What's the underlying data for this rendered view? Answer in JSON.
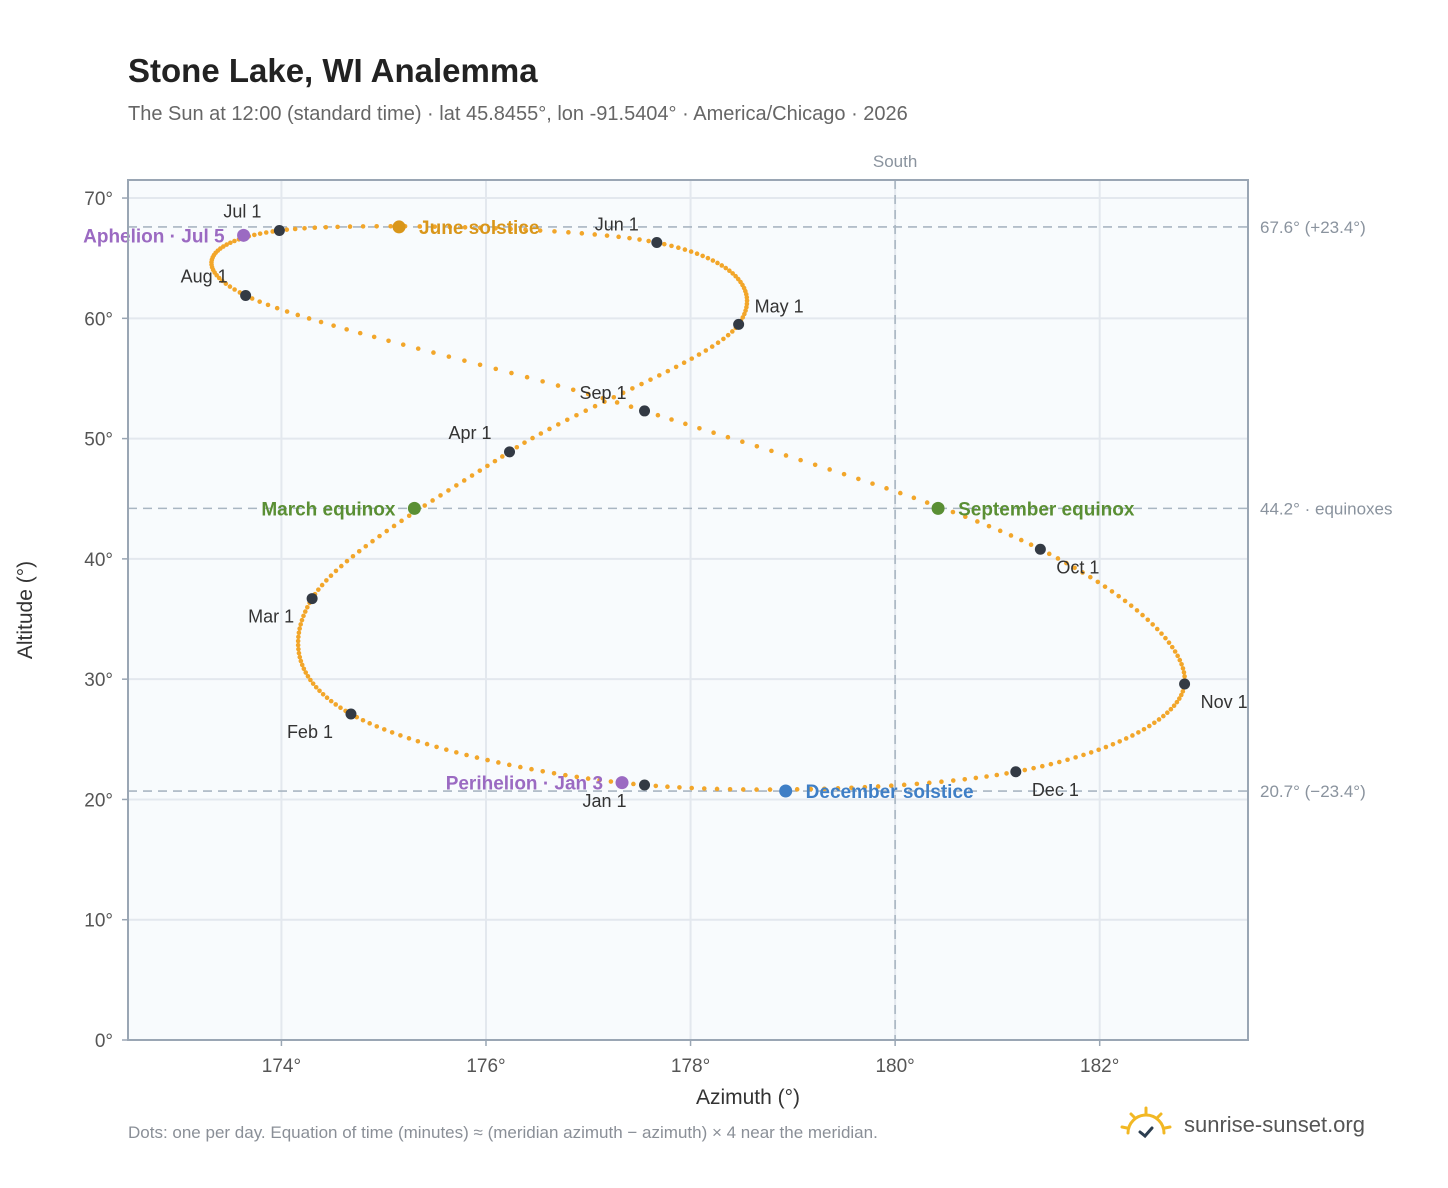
{
  "header": {
    "title": "Stone Lake, WI Analemma",
    "subtitle": "The Sun at 12:00 (standard time) · lat 45.8455°, lon -91.5404° · America/Chicago · 2026"
  },
  "footer": {
    "note": "Dots: one per day. Equation of time (minutes) ≈ (meridian azimuth − azimuth) × 4 near the meridian.",
    "brand": "sunrise-sunset.org",
    "brand_icon": "sun-check-icon"
  },
  "colors": {
    "path": "#f2a62a",
    "month_dot": "#333a44",
    "solstice_june": "#d9961a",
    "solstice_december": "#3f7fc6",
    "equinox": "#5a8f34",
    "apsis": "#9b6ac2",
    "reference": "#a9b6c2",
    "plot_bg": "#f8fbfd"
  },
  "chart_data": {
    "type": "scatter",
    "xlabel": "Azimuth (°)",
    "ylabel": "Altitude (°)",
    "xlim": [
      172.5,
      183.45
    ],
    "ylim": [
      0,
      71.5
    ],
    "x_ticks": [
      174,
      176,
      178,
      180,
      182
    ],
    "x_tick_labels": [
      "174°",
      "176°",
      "178°",
      "180°",
      "182°"
    ],
    "y_ticks": [
      0,
      10,
      20,
      30,
      40,
      50,
      60,
      70
    ],
    "y_tick_labels": [
      "0°",
      "10°",
      "20°",
      "30°",
      "40°",
      "50°",
      "60°",
      "70°"
    ],
    "grid": true,
    "meridian": {
      "azimuth": 180,
      "label": "South"
    },
    "reference_lines": [
      {
        "altitude": 67.6,
        "label": "67.6° (+23.4°)"
      },
      {
        "altitude": 44.2,
        "label": "44.2° · equinoxes"
      },
      {
        "altitude": 20.7,
        "label": "20.7° (−23.4°)"
      }
    ],
    "month_points": [
      {
        "label": "Jan 1",
        "azimuth": 177.55,
        "altitude": 21.2
      },
      {
        "label": "Feb 1",
        "azimuth": 174.68,
        "altitude": 27.1
      },
      {
        "label": "Mar 1",
        "azimuth": 174.3,
        "altitude": 36.7
      },
      {
        "label": "Apr 1",
        "azimuth": 176.23,
        "altitude": 48.9
      },
      {
        "label": "May 1",
        "azimuth": 178.47,
        "altitude": 59.5
      },
      {
        "label": "Jun 1",
        "azimuth": 177.67,
        "altitude": 66.3
      },
      {
        "label": "Jul 1",
        "azimuth": 173.98,
        "altitude": 67.3
      },
      {
        "label": "Aug 1",
        "azimuth": 173.65,
        "altitude": 61.9
      },
      {
        "label": "Sep 1",
        "azimuth": 177.55,
        "altitude": 52.3
      },
      {
        "label": "Oct 1",
        "azimuth": 181.42,
        "altitude": 40.8
      },
      {
        "label": "Nov 1",
        "azimuth": 182.83,
        "altitude": 29.6
      },
      {
        "label": "Dec 1",
        "azimuth": 181.18,
        "altitude": 22.3
      }
    ],
    "events": [
      {
        "label": "June solstice",
        "azimuth": 175.15,
        "altitude": 67.6,
        "kind": "solstice_june"
      },
      {
        "label": "December solstice",
        "azimuth": 178.93,
        "altitude": 20.7,
        "kind": "solstice_december"
      },
      {
        "label": "March equinox",
        "azimuth": 175.3,
        "altitude": 44.2,
        "kind": "equinox"
      },
      {
        "label": "September equinox",
        "azimuth": 180.42,
        "altitude": 44.2,
        "kind": "equinox"
      },
      {
        "label": "Aphelion · Jul 5",
        "azimuth": 173.63,
        "altitude": 66.9,
        "kind": "apsis"
      },
      {
        "label": "Perihelion · Jan 3",
        "azimuth": 177.33,
        "altitude": 21.4,
        "kind": "apsis"
      }
    ]
  }
}
